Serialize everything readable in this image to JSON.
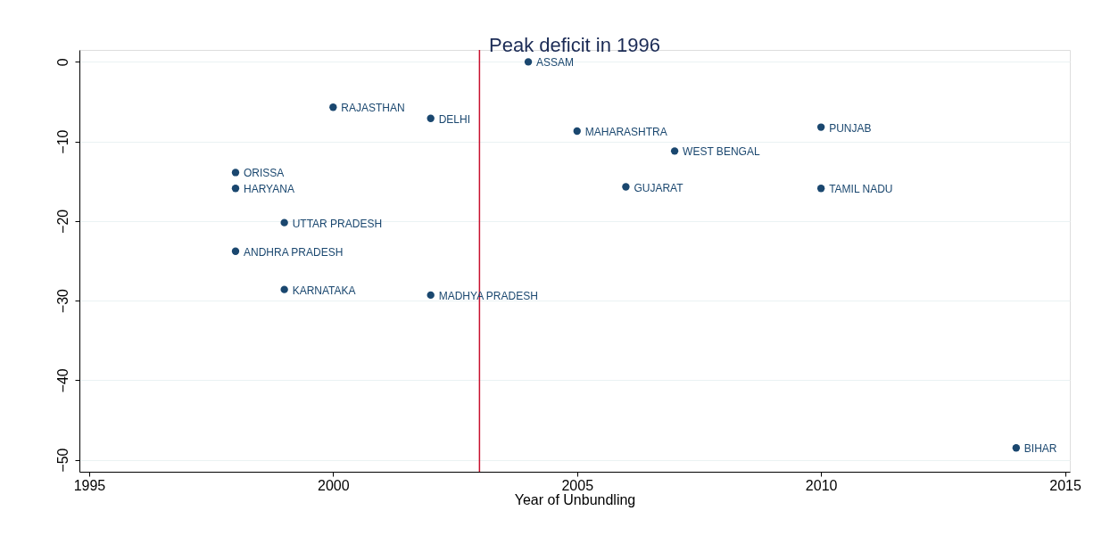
{
  "chart_data": {
    "type": "scatter",
    "title": "Peak deficit in 1996",
    "xlabel": "Year of Unbundling",
    "x": [
      2004,
      2000,
      2002,
      2005,
      2010,
      2007,
      1998,
      1998,
      2006,
      2010,
      1999,
      1998,
      1999,
      2002,
      2014
    ],
    "series": [
      {
        "color": "#1a476f",
        "values": [
          0,
          -5.7,
          -7.1,
          -8.7,
          -8.2,
          -11.2,
          -13.9,
          -15.9,
          -15.7,
          -15.9,
          -20.2,
          -23.8,
          -28.6,
          -29.3,
          -48.5
        ]
      }
    ],
    "annotations": [
      {
        "text": "ASSAM",
        "x": 2004,
        "y": 0
      },
      {
        "text": "RAJASTHAN",
        "x": 2000,
        "y": -5.7
      },
      {
        "text": "DELHI",
        "x": 2002,
        "y": -7.1
      },
      {
        "text": "MAHARASHTRA",
        "x": 2005,
        "y": -8.7
      },
      {
        "text": "PUNJAB",
        "x": 2010,
        "y": -8.2
      },
      {
        "text": "WEST BENGAL",
        "x": 2007,
        "y": -11.2
      },
      {
        "text": "ORISSA",
        "x": 1998,
        "y": -13.9
      },
      {
        "text": "HARYANA",
        "x": 1998,
        "y": -15.9
      },
      {
        "text": "GUJARAT",
        "x": 2006,
        "y": -15.7
      },
      {
        "text": "TAMIL NADU",
        "x": 2010,
        "y": -15.9
      },
      {
        "text": "UTTAR PRADESH",
        "x": 1999,
        "y": -20.2
      },
      {
        "text": "ANDHRA PRADESH",
        "x": 1998,
        "y": -23.8
      },
      {
        "text": "KARNATAKA",
        "x": 1999,
        "y": -28.6
      },
      {
        "text": "MADHYA PRADESH",
        "x": 2002,
        "y": -29.3
      },
      {
        "text": "BIHAR",
        "x": 2014,
        "y": -48.5
      }
    ],
    "ref_lines": [
      {
        "axis": "x",
        "value": 2003,
        "color": "#c8102e"
      }
    ],
    "xlim": [
      1994.8,
      2015.1
    ],
    "xticks": [
      1995,
      2000,
      2005,
      2010,
      2015
    ],
    "ylim": [
      -51.5,
      1.5
    ],
    "yticks": [
      0,
      -10,
      -20,
      -30,
      -40,
      -50
    ],
    "grid": "y"
  }
}
